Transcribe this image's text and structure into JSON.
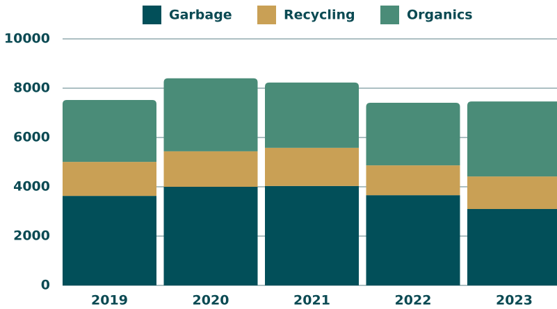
{
  "chart_data": {
    "type": "stacked_bar",
    "categories": [
      "2019",
      "2020",
      "2021",
      "2022",
      "2023"
    ],
    "series": [
      {
        "name": "Garbage",
        "color": "#024f59",
        "values": [
          3630,
          4000,
          4030,
          3660,
          3100
        ]
      },
      {
        "name": "Recycling",
        "color": "#c9a055",
        "values": [
          1380,
          1440,
          1550,
          1210,
          1320
        ]
      },
      {
        "name": "Organics",
        "color": "#4a8c78",
        "values": [
          2510,
          2960,
          2650,
          2540,
          3040
        ]
      }
    ],
    "ylim": [
      0,
      10000
    ],
    "yticks": [
      0,
      2000,
      4000,
      6000,
      8000,
      10000
    ],
    "grid": true,
    "legend": "top"
  }
}
